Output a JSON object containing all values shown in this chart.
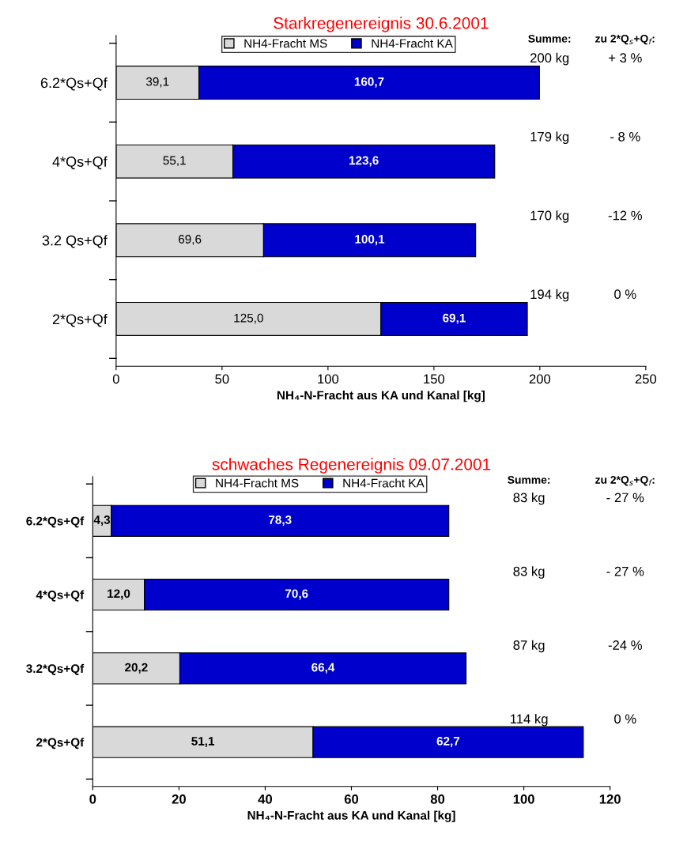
{
  "chart_data": [
    {
      "type": "bar",
      "orientation": "horizontal",
      "stacked": true,
      "title": "Starkregenereignis 30.6.2001",
      "xlabel": "NH₄-N-Fracht aus KA und Kanal [kg]",
      "categories": [
        "6.2*Qs+Qf",
        "4*Qs+Qf",
        "3.2 Qs+Qf",
        "2*Qs+Qf"
      ],
      "series": [
        {
          "name": "NH4-Fracht MS",
          "color": "#d9d9d9",
          "values": [
            39.1,
            55.1,
            69.6,
            125.0
          ],
          "value_labels": [
            "39,1",
            "55,1",
            "69,6",
            "125,0"
          ]
        },
        {
          "name": "NH4-Fracht KA",
          "color": "#0000cc",
          "values": [
            160.7,
            123.6,
            100.1,
            69.1
          ],
          "value_labels": [
            "160,7",
            "123,6",
            "100,1",
            "69,1"
          ]
        }
      ],
      "xlim": [
        0,
        250
      ],
      "xticks": [
        0,
        50,
        100,
        150,
        200,
        250
      ],
      "legend": "top",
      "grid": false,
      "annotations": [
        "Summe:",
        "zu 2*Q$_{s}$+Q$_{f}$:",
        "200 kg",
        "+ 3 %",
        "179 kg",
        "- 8 %",
        "170 kg",
        "-12 %",
        "194 kg",
        "0 %"
      ]
    },
    {
      "type": "bar",
      "orientation": "horizontal",
      "stacked": true,
      "title": "schwaches Regenereignis 09.07.2001",
      "xlabel": "NH₄-N-Fracht aus KA und Kanal [kg]",
      "categories": [
        "6.2*Qs+Qf",
        "4*Qs+Qf",
        "3.2*Qs+Qf",
        "2*Qs+Qf"
      ],
      "series": [
        {
          "name": "NH4-Fracht MS",
          "color": "#d9d9d9",
          "values": [
            4.3,
            12.0,
            20.2,
            51.1
          ],
          "value_labels": [
            "4,3",
            "12,0",
            "20,2",
            "51,1"
          ]
        },
        {
          "name": "NH4-Fracht KA",
          "color": "#0000cc",
          "values": [
            78.3,
            70.6,
            66.4,
            62.7
          ],
          "value_labels": [
            "78,3",
            "70,6",
            "66,4",
            "62,7"
          ]
        }
      ],
      "xlim": [
        0,
        120
      ],
      "xticks": [
        0,
        20,
        40,
        60,
        80,
        100,
        120
      ],
      "legend": "top",
      "grid": false,
      "annotations": [
        "Summe:",
        "zu 2*Q$_{s}$+Q$_{f}$:",
        "83 kg",
        "- 27 %",
        "83 kg",
        "- 27 %",
        "87 kg",
        "-24 %",
        "114 kg",
        "0 %"
      ]
    }
  ]
}
